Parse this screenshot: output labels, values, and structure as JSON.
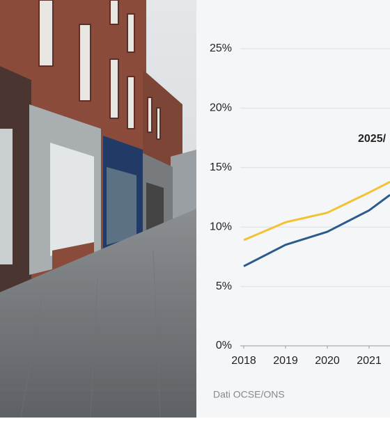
{
  "chart_data": {
    "type": "line",
    "annotation": "2025/",
    "source": "Dati OCSE/ONS",
    "x": [
      2018,
      2019,
      2020,
      2021,
      2021.5
    ],
    "xlim": [
      2018,
      2021.5
    ],
    "xticks": [
      2018,
      2019,
      2020,
      2021
    ],
    "ylim": [
      0,
      25
    ],
    "yticks": [
      {
        "value": 0,
        "label": "0%"
      },
      {
        "value": 5,
        "label": "5%"
      },
      {
        "value": 10,
        "label": "10%"
      },
      {
        "value": 15,
        "label": "15%"
      },
      {
        "value": 20,
        "label": "20%"
      },
      {
        "value": 25,
        "label": "25%"
      }
    ],
    "grid": true,
    "series": [
      {
        "color": "#f2c230",
        "values": [
          8.9,
          10.4,
          11.2,
          12.9,
          13.8
        ]
      },
      {
        "color": "#2b5b8c",
        "values": [
          6.7,
          8.5,
          9.6,
          11.4,
          12.7
        ]
      }
    ]
  }
}
